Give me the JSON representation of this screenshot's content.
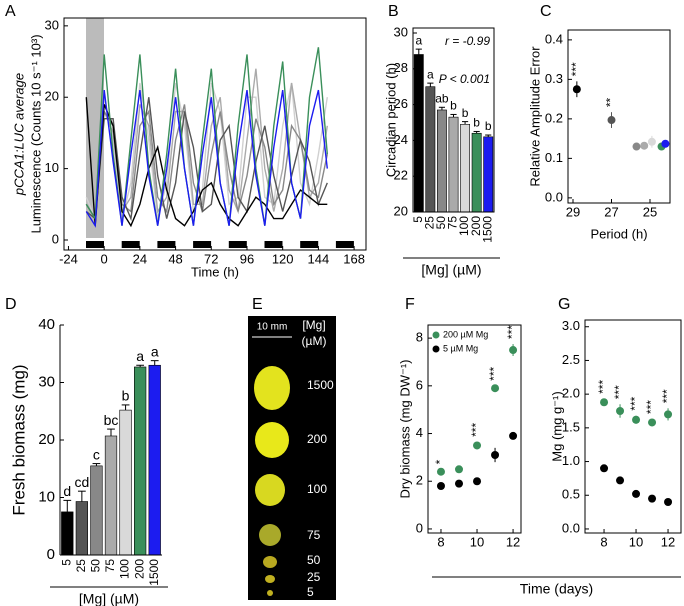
{
  "chart_data": [
    {
      "type": "line",
      "panel": "A",
      "x_label": "Time (h)",
      "y_label": [
        "pCCA1:LUC average",
        "Luminescence (Counts 10 s⁻¹ 10³)"
      ],
      "x": [
        -12,
        -6,
        0,
        6,
        12,
        18,
        24,
        30,
        36,
        42,
        48,
        54,
        60,
        66,
        72,
        78,
        84,
        90,
        96,
        102,
        108,
        114,
        120,
        126,
        132,
        138,
        144,
        150
      ],
      "series": [
        {
          "color": "#d0d0d0",
          "values": [
            6,
            3,
            20,
            14,
            3,
            8,
            22,
            14,
            3,
            8,
            22,
            16,
            4,
            7,
            22,
            18,
            5,
            6,
            20,
            20,
            6,
            5,
            16,
            22,
            8,
            5,
            12,
            20
          ]
        },
        {
          "color": "#aaaaaa",
          "values": [
            5,
            3,
            18,
            15,
            4,
            6,
            19,
            16,
            4,
            6,
            18,
            18,
            5,
            5,
            16,
            20,
            7,
            4,
            14,
            24,
            10,
            4,
            10,
            22,
            14,
            6,
            8,
            16
          ]
        },
        {
          "color": "#888888",
          "values": [
            5,
            3,
            18,
            16,
            5,
            4,
            16,
            18,
            6,
            4,
            14,
            19,
            8,
            4,
            12,
            18,
            10,
            4,
            9,
            17,
            13,
            5,
            7,
            16,
            14,
            7,
            6,
            12
          ]
        },
        {
          "color": "#555555",
          "values": [
            4,
            3,
            17,
            17,
            6,
            3,
            12,
            20,
            9,
            3,
            8,
            18,
            13,
            4,
            5,
            14,
            16,
            6,
            4,
            11,
            16,
            9,
            4,
            9,
            14,
            11,
            5,
            8
          ]
        },
        {
          "color": "#000000",
          "values": [
            20,
            2,
            19,
            16,
            4,
            2,
            5,
            10,
            13,
            7,
            3,
            2,
            4,
            7,
            8,
            5,
            3,
            2,
            4,
            6,
            5,
            3,
            3,
            5,
            7,
            6,
            5,
            5
          ]
        },
        {
          "color": "#3a8f5a",
          "values": [
            5,
            3,
            26,
            12,
            2,
            14,
            26,
            10,
            2,
            12,
            24,
            10,
            2,
            14,
            24,
            8,
            2,
            16,
            26,
            10,
            2,
            16,
            25,
            8,
            3,
            20,
            27,
            12
          ]
        },
        {
          "color": "#1c1cf0",
          "values": [
            4,
            2,
            21,
            11,
            2,
            12,
            21,
            9,
            2,
            10,
            20,
            10,
            2,
            12,
            20,
            8,
            2,
            13,
            21,
            9,
            2,
            13,
            21,
            8,
            3,
            16,
            21,
            10
          ]
        }
      ],
      "xlim": [
        -27,
        176
      ],
      "ylim": [
        -1.4,
        31.1
      ],
      "xticks": [
        -24,
        0,
        24,
        48,
        72,
        96,
        120,
        144,
        168
      ],
      "yticks": [
        0,
        10,
        20,
        30
      ]
    },
    {
      "type": "bar",
      "panel": "B",
      "y_label": "Circadian period (h)",
      "x_label": "[Mg] (µM)",
      "categories": [
        "5",
        "25",
        "50",
        "75",
        "100",
        "200",
        "1500"
      ],
      "values": [
        28.8,
        27.0,
        25.7,
        25.3,
        24.9,
        24.4,
        24.2
      ],
      "errors": [
        0.3,
        0.2,
        0.15,
        0.15,
        0.15,
        0.1,
        0.1
      ],
      "letters": [
        "a",
        "a",
        "ab",
        "b",
        "b",
        "b",
        "b"
      ],
      "colors": [
        "#000000",
        "#555555",
        "#888888",
        "#aaaaaa",
        "#d9d9d9",
        "#3a8f5a",
        "#1c1cf0"
      ],
      "annotations": [
        "r = -0.99",
        "P < 0.001"
      ],
      "ylim": [
        20,
        30.28
      ],
      "yticks": [
        20,
        22,
        24,
        26,
        28,
        30
      ]
    },
    {
      "type": "scatter",
      "panel": "C",
      "y_label": "Relative Amplitude Error",
      "x_label": "Period (h)",
      "x": [
        28.8,
        27.0,
        25.7,
        25.3,
        24.9,
        24.4,
        24.2
      ],
      "values": [
        0.275,
        0.197,
        0.13,
        0.132,
        0.142,
        0.13,
        0.137
      ],
      "errors": [
        0.02,
        0.02,
        0.005,
        0.005,
        0.015,
        0.005,
        0.008
      ],
      "colors": [
        "#000000",
        "#555555",
        "#888888",
        "#aaaaaa",
        "#d9d9d9",
        "#3a8f5a",
        "#1c1cf0"
      ],
      "annotations": [
        {
          "x": 28.8,
          "text": "***"
        },
        {
          "x": 27.0,
          "text": "**"
        }
      ],
      "xlim": [
        29.26,
        23.96
      ],
      "ylim": [
        -0.013,
        0.425
      ],
      "xticks": [
        29,
        27,
        25
      ],
      "yticks": [
        {
          "value": 0,
          "label": "0.0"
        },
        0.1,
        0.2,
        0.3,
        0.4
      ]
    },
    {
      "type": "bar",
      "panel": "D",
      "y_label": "Fresh biomass (mg)",
      "x_label": "[Mg] (µM)",
      "categories": [
        "5",
        "25",
        "50",
        "75",
        "100",
        "200",
        "1500"
      ],
      "values": [
        7.5,
        9.3,
        15.5,
        20.7,
        25.2,
        32.7,
        33.0
      ],
      "errors": [
        2.0,
        1.8,
        0.4,
        1.2,
        0.9,
        0.3,
        0.8
      ],
      "letters": [
        "d",
        "cd",
        "c",
        "bc",
        "b",
        "a",
        "a"
      ],
      "colors": [
        "#000000",
        "#555555",
        "#888888",
        "#aaaaaa",
        "#d9d9d9",
        "#3a8f5a",
        "#1c1cf0"
      ],
      "ylim": [
        0,
        40
      ],
      "yticks": [
        0,
        10,
        20,
        30,
        40
      ]
    },
    {
      "type": "scatter",
      "panel": "F",
      "y_label": "Dry biomass (mg DW⁻¹)",
      "x_label": "Time (days)",
      "legend": "upper left",
      "x": [
        8,
        9,
        10,
        11,
        12
      ],
      "series": [
        {
          "name": "200 µM Mg",
          "color": "#3a8f5a",
          "values": [
            2.4,
            2.5,
            3.5,
            5.9,
            7.5
          ],
          "errors": [
            0.1,
            0.1,
            0.15,
            0.1,
            0.25
          ]
        },
        {
          "name": "5 µM Mg",
          "color": "#000000",
          "values": [
            1.8,
            1.9,
            2.0,
            3.1,
            3.9
          ],
          "errors": [
            0.1,
            0.1,
            0.1,
            0.3,
            0.15
          ]
        }
      ],
      "annotations": [
        {
          "x": 8,
          "text": "*"
        },
        {
          "x": 10,
          "text": "***"
        },
        {
          "x": 11,
          "text": "***"
        },
        {
          "x": 12,
          "text": "***"
        }
      ],
      "xlim": [
        7.28,
        12.44
      ],
      "ylim": [
        -0.17,
        8.55
      ],
      "xticks": [
        8,
        10,
        12
      ],
      "yticks": [
        0,
        2,
        4,
        6,
        8
      ]
    },
    {
      "type": "scatter",
      "panel": "G",
      "y_label": "Mg (mg g⁻¹)",
      "x": [
        8,
        9,
        10,
        11,
        12
      ],
      "series": [
        {
          "color": "#3a8f5a",
          "values": [
            1.88,
            1.75,
            1.62,
            1.58,
            1.7
          ],
          "errors": [
            0.05,
            0.1,
            0.06,
            0.05,
            0.09
          ]
        },
        {
          "color": "#000000",
          "values": [
            0.9,
            0.72,
            0.52,
            0.45,
            0.4
          ],
          "errors": [
            0.03,
            0.03,
            0.03,
            0.03,
            0.03
          ]
        }
      ],
      "annotations": [
        {
          "x": 8,
          "text": "***"
        },
        {
          "x": 9,
          "text": "***"
        },
        {
          "x": 10,
          "text": "***"
        },
        {
          "x": 11,
          "text": "***"
        },
        {
          "x": 12,
          "text": "***"
        }
      ],
      "xlim": [
        6.81,
        12.81
      ],
      "ylim": [
        -0.06,
        3.1
      ],
      "xticks": [
        8,
        10,
        12
      ],
      "yticks": [
        {
          "value": 0,
          "label": "0.0"
        },
        0.5,
        {
          "value": 1,
          "label": "1.0"
        },
        1.5,
        {
          "value": 2,
          "label": "2.0"
        },
        2.5,
        {
          "value": 3,
          "label": "3.0"
        }
      ]
    }
  ],
  "image_panel": {
    "panel": "E",
    "scale_bar": "10 mm",
    "header": [
      "[Mg]",
      "(µM)"
    ],
    "labels": [
      "1500",
      "200",
      "100",
      "75",
      "50",
      "25",
      "5"
    ]
  }
}
